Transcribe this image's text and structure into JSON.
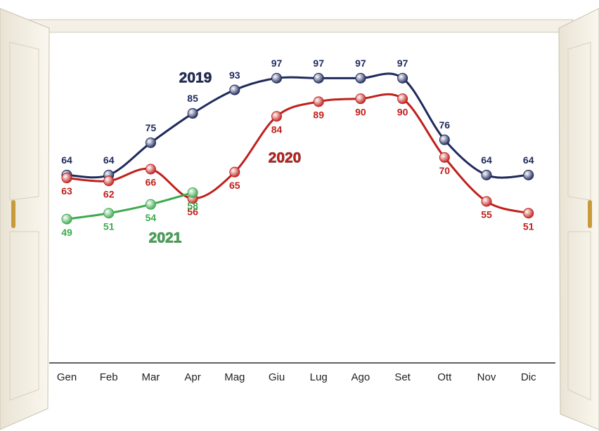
{
  "chart_data": {
    "type": "line",
    "categories": [
      "Gen",
      "Feb",
      "Mar",
      "Apr",
      "Mag",
      "Giu",
      "Lug",
      "Ago",
      "Set",
      "Ott",
      "Nov",
      "Dic"
    ],
    "series": [
      {
        "name": "2019",
        "color": "#1f2a5c",
        "values": [
          64,
          64,
          75,
          85,
          93,
          97,
          97,
          97,
          97,
          76,
          64,
          64
        ]
      },
      {
        "name": "2020",
        "color": "#c0201c",
        "values": [
          63,
          62,
          66,
          56,
          65,
          84,
          89,
          90,
          90,
          70,
          55,
          51
        ]
      },
      {
        "name": "2021",
        "color": "#3daa4e",
        "values": [
          49,
          51,
          54,
          58,
          null,
          null,
          null,
          null,
          null,
          null,
          null,
          null
        ]
      }
    ],
    "ylim": [
      0,
      110
    ],
    "smooth": true
  }
}
